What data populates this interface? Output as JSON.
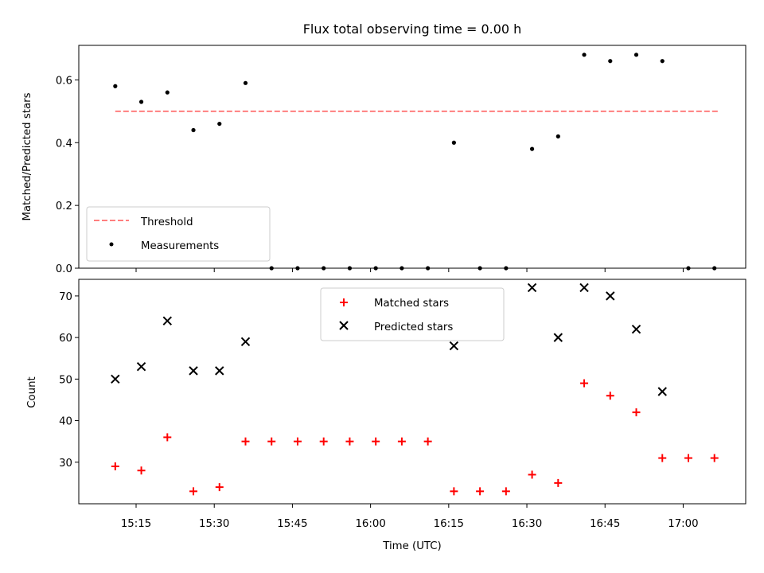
{
  "chart_data": [
    {
      "type": "scatter",
      "title": "Flux total observing time = 0.00 h",
      "xlabel": "",
      "ylabel": "Matched/Predicted stars",
      "ylim": [
        0,
        0.71
      ],
      "yticks": [
        "0.0",
        "0.2",
        "0.4",
        "0.6"
      ],
      "xlim": [
        "15:04",
        "17:12"
      ],
      "legend": {
        "position": "lower-left",
        "entries": [
          "Threshold",
          "Measurements"
        ]
      },
      "threshold": {
        "name": "Threshold",
        "value": 0.5,
        "color": "#ff7f7f",
        "style": "dashed",
        "x_start": "15:11",
        "x_end": "17:07"
      },
      "series": [
        {
          "name": "Measurements",
          "color": "#000000",
          "marker": "dot",
          "x": [
            "15:11",
            "15:16",
            "15:21",
            "15:26",
            "15:31",
            "15:36",
            "15:41",
            "15:46",
            "15:51",
            "15:56",
            "16:01",
            "16:06",
            "16:11",
            "16:16",
            "16:21",
            "16:26",
            "16:31",
            "16:36",
            "16:41",
            "16:46",
            "16:51",
            "16:56",
            "17:01",
            "17:06"
          ],
          "y": [
            0.58,
            0.53,
            0.56,
            0.44,
            0.46,
            0.59,
            0,
            0,
            0,
            0,
            0,
            0,
            0,
            0.4,
            0,
            0,
            0.38,
            0.42,
            0.68,
            0.66,
            0.68,
            0.66,
            0,
            0
          ]
        }
      ]
    },
    {
      "type": "scatter",
      "title": "",
      "xlabel": "Time (UTC)",
      "ylabel": "Count",
      "ylim": [
        20,
        74
      ],
      "yticks": [
        "30",
        "40",
        "50",
        "60",
        "70"
      ],
      "xticks": [
        "15:15",
        "15:30",
        "15:45",
        "16:00",
        "16:15",
        "16:30",
        "16:45",
        "17:00"
      ],
      "xlim": [
        "15:04",
        "17:12"
      ],
      "legend": {
        "position": "upper-center",
        "entries": [
          "Matched stars",
          "Predicted stars"
        ]
      },
      "series": [
        {
          "name": "Matched stars",
          "color": "#ff0000",
          "marker": "plus",
          "x": [
            "15:11",
            "15:16",
            "15:21",
            "15:26",
            "15:31",
            "15:36",
            "15:41",
            "15:46",
            "15:51",
            "15:56",
            "16:01",
            "16:06",
            "16:11",
            "16:16",
            "16:21",
            "16:26",
            "16:31",
            "16:36",
            "16:41",
            "16:46",
            "16:51",
            "16:56",
            "17:01",
            "17:06"
          ],
          "y": [
            29,
            28,
            36,
            23,
            24,
            35,
            35,
            35,
            35,
            35,
            35,
            35,
            35,
            23,
            23,
            23,
            27,
            25,
            49,
            46,
            42,
            31,
            31,
            31
          ]
        },
        {
          "name": "Predicted stars",
          "color": "#000000",
          "marker": "x",
          "x": [
            "15:11",
            "15:16",
            "15:21",
            "15:26",
            "15:31",
            "15:36",
            "16:16",
            "16:31",
            "16:36",
            "16:41",
            "16:46",
            "16:51",
            "16:56"
          ],
          "y": [
            50,
            53,
            64,
            52,
            52,
            59,
            58,
            72,
            60,
            72,
            70,
            62,
            47
          ]
        }
      ]
    }
  ]
}
